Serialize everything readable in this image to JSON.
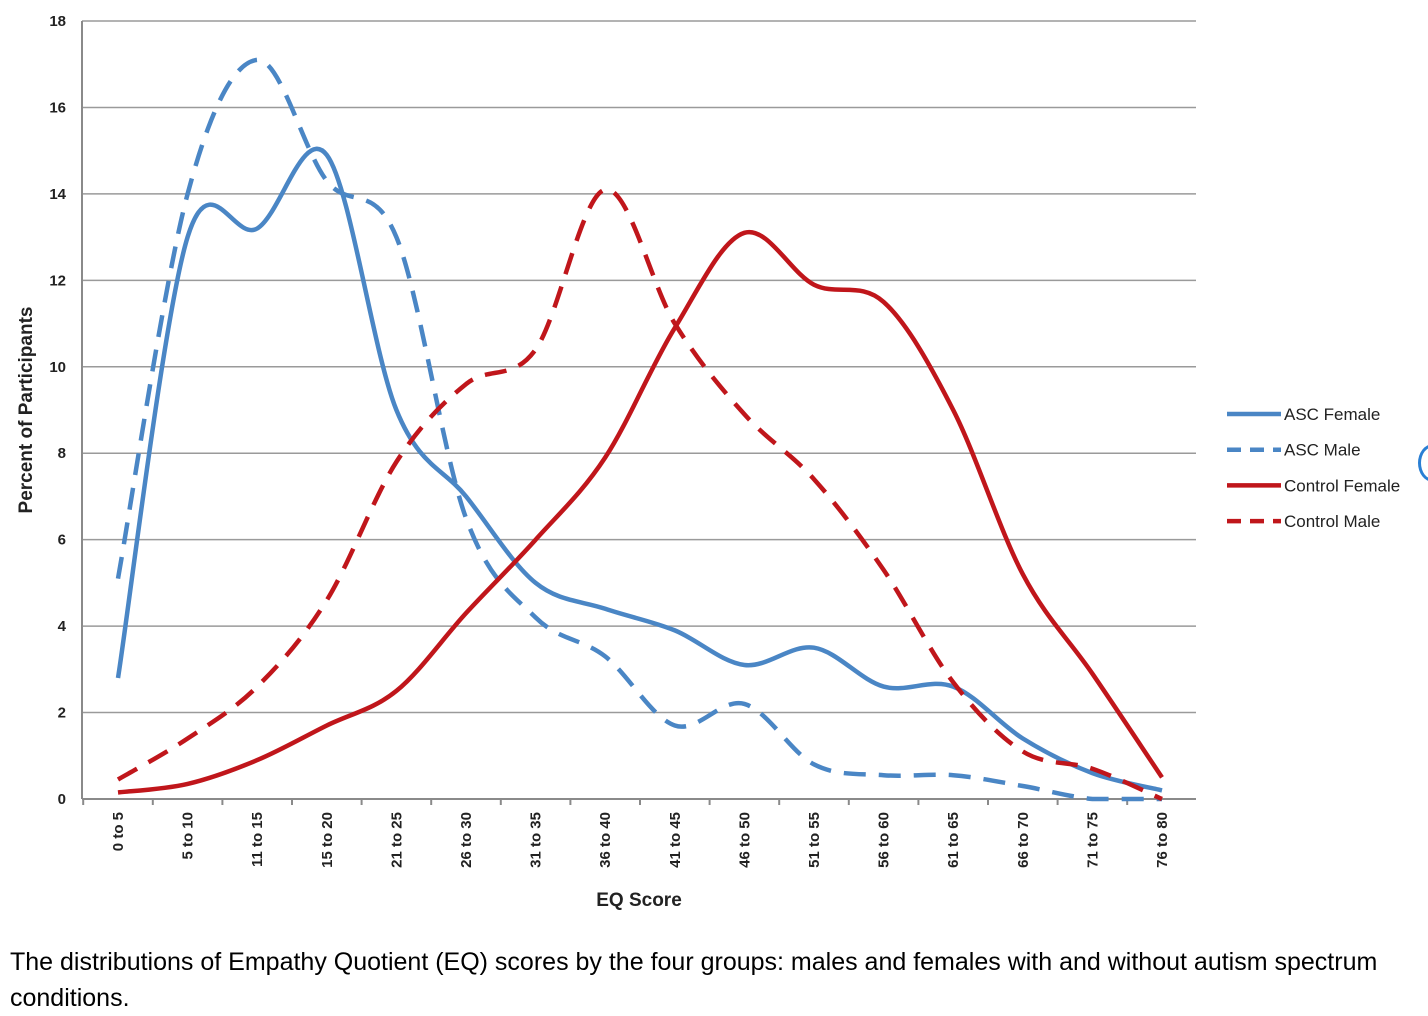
{
  "chart_data": {
    "type": "line",
    "title": "",
    "xlabel": "EQ Score",
    "ylabel": "Percent of Participants",
    "ylim": [
      0,
      18
    ],
    "yticks": [
      0,
      2,
      4,
      6,
      8,
      10,
      12,
      14,
      16,
      18
    ],
    "grid": true,
    "legend_position": "right",
    "categories": [
      "0 to 5",
      "5 to 10",
      "11 to 15",
      "15 to 20",
      "21 to 25",
      "26 to 30",
      "31 to 35",
      "36 to 40",
      "41 to 45",
      "46 to 50",
      "51 to 55",
      "56 to 60",
      "61 to 65",
      "66 to 70",
      "71 to 75",
      "76 to 80"
    ],
    "series": [
      {
        "name": "ASC Female",
        "color": "#4a86c5",
        "dash": "solid",
        "values": [
          2.8,
          13.0,
          13.2,
          14.9,
          9.0,
          7.0,
          5.0,
          4.4,
          3.9,
          3.1,
          3.5,
          2.6,
          2.6,
          1.4,
          0.6,
          0.2
        ]
      },
      {
        "name": "ASC Male",
        "color": "#4a86c5",
        "dash": "dashed",
        "values": [
          5.1,
          14.0,
          17.1,
          14.3,
          13.0,
          6.5,
          4.2,
          3.3,
          1.7,
          2.2,
          0.8,
          0.55,
          0.55,
          0.3,
          0.0,
          0.0
        ]
      },
      {
        "name": "Control Female",
        "color": "#c0161b",
        "dash": "solid",
        "values": [
          0.15,
          0.35,
          0.9,
          1.7,
          2.5,
          4.3,
          6.0,
          7.9,
          10.9,
          13.1,
          11.9,
          11.5,
          9.0,
          5.2,
          2.9,
          0.5
        ]
      },
      {
        "name": "Control Male",
        "color": "#c0161b",
        "dash": "dashed",
        "values": [
          0.45,
          1.4,
          2.6,
          4.6,
          7.8,
          9.6,
          10.4,
          14.1,
          11.0,
          8.9,
          7.4,
          5.3,
          2.7,
          1.1,
          0.7,
          0.0
        ]
      }
    ]
  },
  "caption": "The distributions of Empathy Quotient (EQ) scores by the four groups: males and females with and without autism spectrum conditions."
}
